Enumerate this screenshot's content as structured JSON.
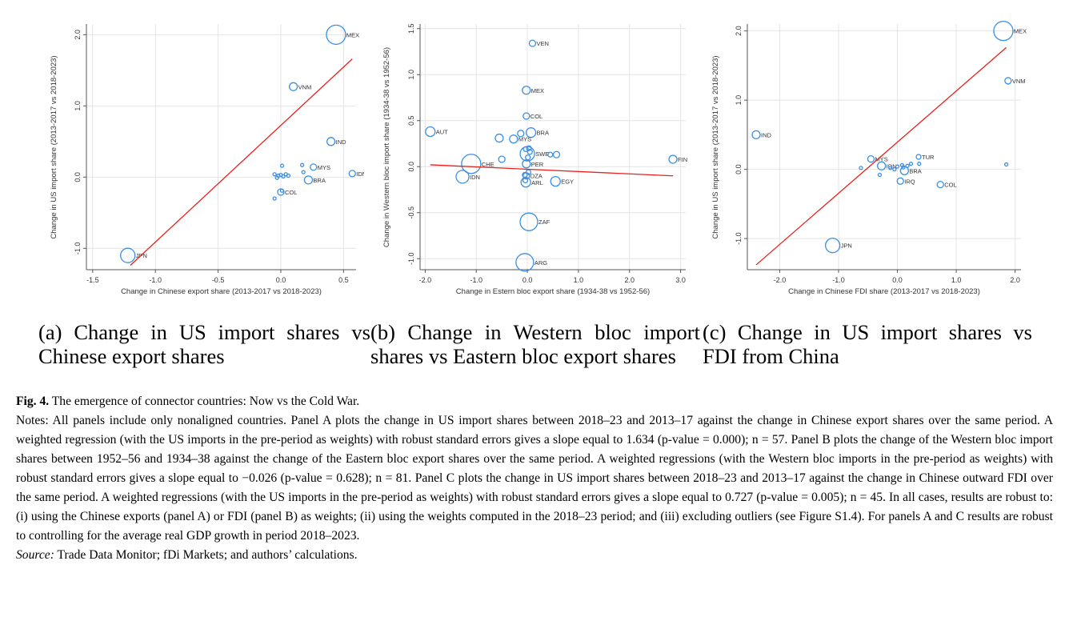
{
  "subcaptions": {
    "a": "(a) Change in US import shares vs Chinese export shares",
    "b": "(b) Change in Western bloc import shares vs Eastern bloc export shares",
    "c": "(c) Change in US import shares vs FDI from China"
  },
  "caption": {
    "label": "Fig. 4.",
    "title": "The emergence of connector countries: Now vs the Cold War.",
    "notes": "Notes: All panels include only nonaligned countries. Panel A plots the change in US import shares between 2018–23 and 2013–17 against the change in Chinese export shares over the same period. A weighted regression (with the US imports in the pre-period as weights) with robust standard errors gives a slope equal to 1.634 (p-value = 0.000); n = 57. Panel B plots the change of the Western bloc import shares between 1952–56 and 1934–38 against the change of the Eastern bloc export shares over the same period. A weighted regressions (with the Western bloc imports in the pre-period as weights) with robust standard errors gives a slope equal to −0.026 (p-value = 0.628); n = 81. Panel C plots the change in US import shares between 2018–23 and 2013–17 against the change in Chinese outward FDI over the same period. A weighted regressions (with the US imports in the pre-period as weights) with robust standard errors gives a slope equal to 0.727 (p-value = 0.005); n = 45. In all cases, results are robust to: (i) using the Chinese exports (panel A) or FDI (panel B) as weights; (ii) using the weights computed in the 2018–23 period; and (iii) excluding outliers (see Figure S1.4). For panels A and C results are robust to controlling for the average real GDP growth in period 2018–2023.",
    "source_label": "Source:",
    "source_text": "Trade Data Monitor; fDi Markets; and authors’ calculations."
  },
  "colors": {
    "marker": "#3b8fe6",
    "fit": "#e8211d",
    "grid": "#e4e4e4",
    "axis": "#555555"
  },
  "chart_data": [
    {
      "type": "scatter",
      "panel": "a",
      "xlabel": "Change in Chinese export share (2013-2017 vs 2018-2023)",
      "ylabel": "Change in US import share (2013-2017 vs 2018-2023)",
      "xlim": [
        -1.55,
        0.6
      ],
      "ylim": [
        -1.3,
        2.15
      ],
      "xticks": [
        -1.5,
        -1.0,
        -0.5,
        0.0,
        0.5
      ],
      "xtick_labels": [
        "-1.5",
        "-1.0",
        "-0.5",
        "0.0",
        "0.5"
      ],
      "yticks": [
        -1.0,
        0.0,
        1.0,
        2.0
      ],
      "ytick_labels": [
        "-1.0",
        "0.0",
        "1.0",
        "2.0"
      ],
      "grid": true,
      "fit_line": {
        "x": [
          -1.2,
          0.57
        ],
        "y": [
          -1.24,
          1.66
        ]
      },
      "points": [
        {
          "x": 0.44,
          "y": 2.0,
          "label": "MEX",
          "w": 12
        },
        {
          "x": 0.1,
          "y": 1.27,
          "label": "VNM",
          "w": 5
        },
        {
          "x": 0.4,
          "y": 0.5,
          "label": "IND",
          "w": 5
        },
        {
          "x": 0.26,
          "y": 0.14,
          "label": "MYS",
          "w": 4
        },
        {
          "x": 0.57,
          "y": 0.05,
          "label": "IDN",
          "w": 4
        },
        {
          "x": 0.22,
          "y": -0.04,
          "label": "BRA",
          "w": 5
        },
        {
          "x": 0.0,
          "y": -0.21,
          "label": "COL",
          "w": 4
        },
        {
          "x": -1.22,
          "y": -1.1,
          "label": "JPN",
          "w": 9
        },
        {
          "x": 0.01,
          "y": 0.16,
          "label": "",
          "w": 2
        },
        {
          "x": -0.05,
          "y": 0.04,
          "label": "",
          "w": 2
        },
        {
          "x": -0.02,
          "y": 0.02,
          "label": "",
          "w": 2
        },
        {
          "x": 0.0,
          "y": 0.03,
          "label": "",
          "w": 2
        },
        {
          "x": 0.02,
          "y": 0.01,
          "label": "",
          "w": 2
        },
        {
          "x": 0.04,
          "y": 0.04,
          "label": "",
          "w": 2
        },
        {
          "x": -0.03,
          "y": -0.01,
          "label": "",
          "w": 2
        },
        {
          "x": 0.06,
          "y": 0.02,
          "label": "",
          "w": 2
        },
        {
          "x": 0.17,
          "y": 0.17,
          "label": "",
          "w": 2
        },
        {
          "x": 0.18,
          "y": 0.07,
          "label": "",
          "w": 2
        },
        {
          "x": -0.05,
          "y": -0.3,
          "label": "",
          "w": 2
        },
        {
          "x": 0.01,
          "y": -0.19,
          "label": "",
          "w": 2
        }
      ]
    },
    {
      "type": "scatter",
      "panel": "b",
      "xlabel": "Change in Estern bloc export share (1934-38 vs 1952-56)",
      "ylabel": "Change in Western bloc import share (1934-38 vs 1952-56)",
      "xlim": [
        -2.1,
        3.1
      ],
      "ylim": [
        -1.12,
        1.55
      ],
      "xticks": [
        -2.0,
        -1.0,
        0.0,
        1.0,
        2.0,
        3.0
      ],
      "xtick_labels": [
        "-2.0",
        "-1.0",
        "0.0",
        "1.0",
        "2.0",
        "3.0"
      ],
      "yticks": [
        -1.0,
        -0.5,
        0.0,
        0.5,
        1.0,
        1.5
      ],
      "ytick_labels": [
        "-1.0",
        "-0.5",
        "0.0",
        "0.5",
        "1.0",
        "1.5"
      ],
      "grid": true,
      "fit_line": {
        "x": [
          -1.9,
          2.85
        ],
        "y": [
          0.02,
          -0.1
        ]
      },
      "points": [
        {
          "x": 0.1,
          "y": 1.34,
          "label": "VEN",
          "w": 4
        },
        {
          "x": -0.02,
          "y": 0.83,
          "label": "MEX",
          "w": 5
        },
        {
          "x": -0.02,
          "y": 0.55,
          "label": "COL",
          "w": 4
        },
        {
          "x": 0.07,
          "y": 0.37,
          "label": "BRA",
          "w": 6
        },
        {
          "x": -0.27,
          "y": 0.3,
          "label": "MYS",
          "w": 5
        },
        {
          "x": -1.9,
          "y": 0.38,
          "label": "AUT",
          "w": 6
        },
        {
          "x": 2.85,
          "y": 0.08,
          "label": "FIN",
          "w": 5
        },
        {
          "x": -1.1,
          "y": 0.03,
          "label": "CHE",
          "w": 12
        },
        {
          "x": -1.27,
          "y": -0.11,
          "label": "IDN",
          "w": 8
        },
        {
          "x": 0.0,
          "y": 0.14,
          "label": "SWE",
          "w": 9
        },
        {
          "x": -0.02,
          "y": 0.03,
          "label": "PER",
          "w": 5
        },
        {
          "x": -0.02,
          "y": -0.1,
          "label": "DZA",
          "w": 4
        },
        {
          "x": -0.03,
          "y": -0.17,
          "label": "ARL",
          "w": 6
        },
        {
          "x": 0.55,
          "y": -0.16,
          "label": "EGY",
          "w": 6
        },
        {
          "x": 0.03,
          "y": -0.6,
          "label": "ZAF",
          "w": 11
        },
        {
          "x": -0.05,
          "y": -1.04,
          "label": "ARG",
          "w": 11
        },
        {
          "x": -0.13,
          "y": 0.36,
          "label": "",
          "w": 4
        },
        {
          "x": -0.55,
          "y": 0.31,
          "label": "",
          "w": 5
        },
        {
          "x": -0.5,
          "y": 0.08,
          "label": "",
          "w": 4
        },
        {
          "x": 0.45,
          "y": 0.13,
          "label": "",
          "w": 3
        },
        {
          "x": 0.57,
          "y": 0.13,
          "label": "",
          "w": 4
        },
        {
          "x": 0.03,
          "y": 0.2,
          "label": "",
          "w": 3
        },
        {
          "x": -0.03,
          "y": 0.19,
          "label": "",
          "w": 3
        },
        {
          "x": 0.02,
          "y": -0.06,
          "label": "",
          "w": 3
        },
        {
          "x": -0.05,
          "y": -0.09,
          "label": "",
          "w": 3
        },
        {
          "x": -0.04,
          "y": -0.15,
          "label": "",
          "w": 3
        },
        {
          "x": 0.01,
          "y": 0.1,
          "label": "",
          "w": 3
        },
        {
          "x": 0.05,
          "y": 0.16,
          "label": "",
          "w": 3
        }
      ]
    },
    {
      "type": "scatter",
      "panel": "c",
      "xlabel": "Change in Chinese FDI share (2013-2017 vs 2018-2023)",
      "ylabel": "Change in US import share (2013-2017 vs 2018-2023)",
      "xlim": [
        -2.55,
        2.1
      ],
      "ylim": [
        -1.45,
        2.1
      ],
      "xticks": [
        -2.0,
        -1.0,
        0.0,
        1.0,
        2.0
      ],
      "xtick_labels": [
        "-2.0",
        "-1.0",
        "0.0",
        "1.0",
        "2.0"
      ],
      "yticks": [
        -1.0,
        0.0,
        1.0,
        2.0
      ],
      "ytick_labels": [
        "-1.0",
        "0.0",
        "1.0",
        "2.0"
      ],
      "grid": true,
      "fit_line": {
        "x": [
          -2.4,
          1.85
        ],
        "y": [
          -1.38,
          1.76
        ]
      },
      "points": [
        {
          "x": 1.8,
          "y": 2.0,
          "label": "MEX",
          "w": 12
        },
        {
          "x": 1.88,
          "y": 1.28,
          "label": "VNM",
          "w": 4
        },
        {
          "x": -2.4,
          "y": 0.5,
          "label": "IND",
          "w": 5
        },
        {
          "x": -0.45,
          "y": 0.15,
          "label": "MYS",
          "w": 4
        },
        {
          "x": 0.36,
          "y": 0.18,
          "label": "TUR",
          "w": 3
        },
        {
          "x": -0.27,
          "y": 0.05,
          "label": "IDN",
          "w": 5
        },
        {
          "x": 0.12,
          "y": -0.02,
          "label": "BRA",
          "w": 5
        },
        {
          "x": 0.05,
          "y": -0.17,
          "label": "IRQ",
          "w": 4
        },
        {
          "x": 0.73,
          "y": -0.22,
          "label": "COL",
          "w": 4
        },
        {
          "x": -1.1,
          "y": -1.1,
          "label": "JPN",
          "w": 9
        },
        {
          "x": 1.85,
          "y": 0.07,
          "label": "",
          "w": 2
        },
        {
          "x": -0.62,
          "y": 0.02,
          "label": "",
          "w": 2
        },
        {
          "x": -0.3,
          "y": -0.08,
          "label": "",
          "w": 2
        },
        {
          "x": -0.12,
          "y": 0.02,
          "label": "",
          "w": 2
        },
        {
          "x": 0.0,
          "y": 0.04,
          "label": "",
          "w": 2
        },
        {
          "x": 0.08,
          "y": 0.06,
          "label": "",
          "w": 2
        },
        {
          "x": 0.17,
          "y": 0.05,
          "label": "",
          "w": 2
        },
        {
          "x": 0.23,
          "y": 0.08,
          "label": "",
          "w": 2
        },
        {
          "x": 0.37,
          "y": 0.08,
          "label": "",
          "w": 2
        },
        {
          "x": -0.05,
          "y": 0.0,
          "label": "",
          "w": 2
        },
        {
          "x": 0.1,
          "y": 0.03,
          "label": "",
          "w": 2
        }
      ]
    }
  ]
}
